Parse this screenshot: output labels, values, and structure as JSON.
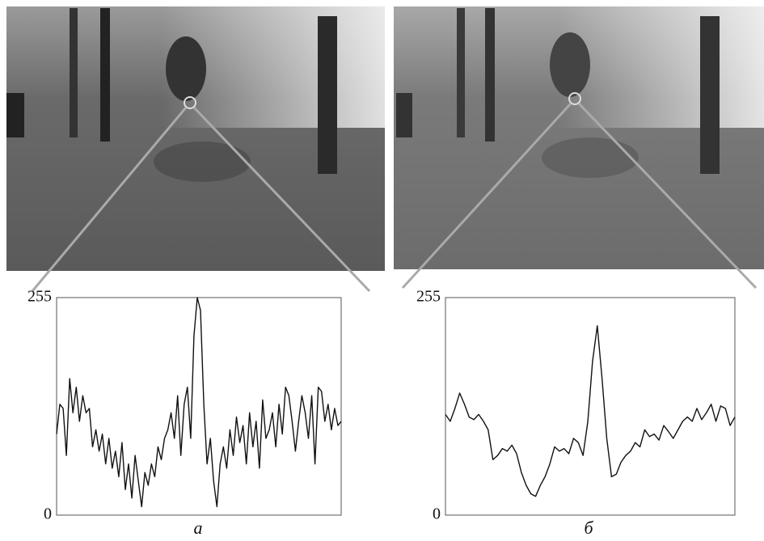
{
  "chart_data": [
    {
      "type": "line",
      "caption": "а",
      "color": "#111111",
      "ylim": [
        0,
        255
      ],
      "yticks": [
        0,
        255
      ],
      "values": [
        95,
        130,
        125,
        70,
        160,
        120,
        150,
        110,
        140,
        120,
        125,
        80,
        100,
        75,
        95,
        60,
        90,
        55,
        75,
        45,
        85,
        30,
        60,
        20,
        70,
        40,
        10,
        50,
        35,
        60,
        45,
        80,
        65,
        90,
        100,
        120,
        90,
        140,
        70,
        130,
        150,
        90,
        210,
        255,
        240,
        130,
        60,
        90,
        40,
        10,
        60,
        80,
        55,
        100,
        70,
        115,
        85,
        105,
        60,
        120,
        80,
        110,
        55,
        135,
        90,
        100,
        120,
        80,
        130,
        95,
        150,
        140,
        110,
        75,
        110,
        140,
        120,
        90,
        140,
        60,
        150,
        145,
        110,
        130,
        100,
        125,
        105,
        110
      ]
    },
    {
      "type": "line",
      "caption": "б",
      "color": "#111111",
      "ylim": [
        0,
        255
      ],
      "yticks": [
        0,
        255
      ],
      "values": [
        118,
        110,
        125,
        143,
        130,
        115,
        112,
        118,
        110,
        100,
        65,
        70,
        78,
        75,
        82,
        72,
        50,
        35,
        25,
        22,
        35,
        45,
        60,
        80,
        75,
        78,
        72,
        90,
        85,
        70,
        110,
        180,
        222,
        160,
        90,
        45,
        48,
        62,
        70,
        75,
        85,
        80,
        100,
        92,
        95,
        88,
        105,
        98,
        90,
        100,
        110,
        115,
        110,
        125,
        112,
        120,
        130,
        110,
        128,
        125,
        105,
        115
      ]
    }
  ]
}
